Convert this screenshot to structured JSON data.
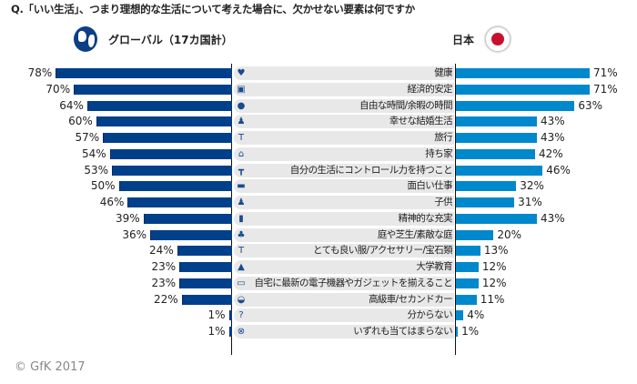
{
  "chart_data": {
    "type": "bar",
    "title": "Q.「いい生活」、つまり理想的な生活について考えた場合に、欠かせない要素は何ですか",
    "series": [
      {
        "name": "グローバル（17カ国計）",
        "color": "#003f8a",
        "values": [
          78,
          70,
          64,
          60,
          57,
          54,
          53,
          50,
          46,
          39,
          36,
          24,
          23,
          23,
          22,
          1,
          1
        ]
      },
      {
        "name": "日本",
        "color": "#0088cc",
        "values": [
          71,
          71,
          63,
          43,
          43,
          42,
          46,
          32,
          31,
          43,
          20,
          13,
          12,
          12,
          11,
          4,
          1
        ]
      }
    ],
    "categories": [
      "健康",
      "経済的安定",
      "自由な時間/余暇の時間",
      "幸せな結婚生活",
      "旅行",
      "持ち家",
      "自分の生活にコントロール力を持つこと",
      "面白い仕事",
      "子供",
      "精神的な充実",
      "庭や芝生/素敵な庭",
      "とても良い服/アクセサリー/宝石類",
      "大学教育",
      "自宅に最新の電子機器やガジェットを揃えること",
      "高級車/セカンドカー",
      "分からない",
      "いずれも当てはまらない"
    ],
    "icons": [
      "heart-icon",
      "money-icon",
      "clock-icon",
      "couple-icon",
      "palm-tree-icon",
      "house-icon",
      "signpost-icon",
      "briefcase-icon",
      "children-icon",
      "book-icon",
      "tree-icon",
      "clothes-icon",
      "graduation-cap-icon",
      "laptop-icon",
      "car-icon",
      "question-icon",
      "cross-circle-icon"
    ],
    "value_unit": "%",
    "xlim": [
      0,
      100
    ]
  },
  "footer": "© GfK 2017"
}
